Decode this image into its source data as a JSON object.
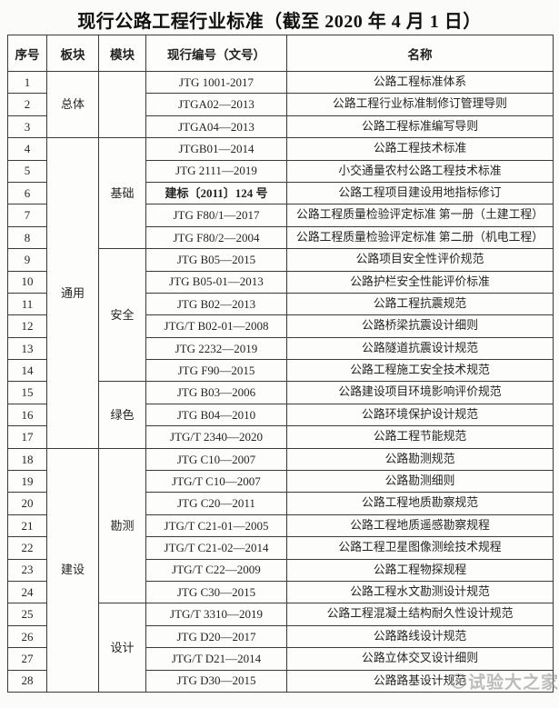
{
  "title": "现行公路工程行业标准（截至 2020 年 4 月 1 日）",
  "watermark": {
    "text": "试验大之家",
    "icon": "circle-swirl-logo",
    "color": "#919191"
  },
  "colors": {
    "border": "#3a3a3a",
    "text": "#242424",
    "background": "#fbfbfa"
  },
  "table": {
    "headers": [
      "序号",
      "板块",
      "模块",
      "现行编号（文号）",
      "名称"
    ],
    "plate_groups": [
      {
        "label": "总体",
        "start": 1,
        "span": 3
      },
      {
        "label": "通用",
        "start": 4,
        "span": 14
      },
      {
        "label": "建设",
        "start": 18,
        "span": 11
      }
    ],
    "module_groups": [
      {
        "label": "",
        "start": 1,
        "span": 3
      },
      {
        "label": "基础",
        "start": 4,
        "span": 5
      },
      {
        "label": "安全",
        "start": 9,
        "span": 6
      },
      {
        "label": "绿色",
        "start": 15,
        "span": 3
      },
      {
        "label": "勘测",
        "start": 18,
        "span": 7
      },
      {
        "label": "设计",
        "start": 25,
        "span": 4
      }
    ],
    "rows": [
      {
        "no": "1",
        "code": "JTG 1001-2017",
        "name": "公路工程标准体系"
      },
      {
        "no": "2",
        "code": "JTGA02—2013",
        "name": "公路工程行业标准制修订管理导则"
      },
      {
        "no": "3",
        "code": "JTGA04—2013",
        "name": "公路工程标准编写导则"
      },
      {
        "no": "4",
        "code": "JTGB01—2014",
        "name": "公路工程技术标准"
      },
      {
        "no": "5",
        "code": "JTG 2111—2019",
        "name": "小交通量农村公路工程技术标准"
      },
      {
        "no": "6",
        "code": "建标〔2011〕124 号",
        "name": "公路工程项目建设用地指标修订",
        "bold_code": true
      },
      {
        "no": "7",
        "code": "JTG F80/1—2017",
        "name": "公路工程质量检验评定标准  第一册（土建工程）"
      },
      {
        "no": "8",
        "code": "JTG F80/2—2004",
        "name": "公路工程质量检验评定标准  第二册（机电工程）"
      },
      {
        "no": "9",
        "code": "JTG B05—2015",
        "name": "公路项目安全性评价规范"
      },
      {
        "no": "10",
        "code": "JTG B05-01—2013",
        "name": "公路护栏安全性能评价标准"
      },
      {
        "no": "11",
        "code": "JTG B02—2013",
        "name": "公路工程抗震规范"
      },
      {
        "no": "12",
        "code": "JTG/T B02-01—2008",
        "name": "公路桥梁抗震设计细则"
      },
      {
        "no": "13",
        "code": "JTG 2232—2019",
        "name": "公路隧道抗震设计规范"
      },
      {
        "no": "14",
        "code": "JTG F90—2015",
        "name": "公路工程施工安全技术规范"
      },
      {
        "no": "15",
        "code": "JTG B03—2006",
        "name": "公路建设项目环境影响评价规范"
      },
      {
        "no": "16",
        "code": "JTG B04—2010",
        "name": "公路环境保护设计规范"
      },
      {
        "no": "17",
        "code": "JTG/T 2340—2020",
        "name": "公路工程节能规范"
      },
      {
        "no": "18",
        "code": "JTG C10—2007",
        "name": "公路勘测规范"
      },
      {
        "no": "19",
        "code": "JTG/T C10—2007",
        "name": "公路勘测细则"
      },
      {
        "no": "20",
        "code": "JTG C20—2011",
        "name": "公路工程地质勘察规范"
      },
      {
        "no": "21",
        "code": "JTG/T C21-01—2005",
        "name": "公路工程地质遥感勘察规程"
      },
      {
        "no": "22",
        "code": "JTG/T C21-02—2014",
        "name": "公路工程卫星图像测绘技术规程"
      },
      {
        "no": "23",
        "code": "JTG/T C22—2009",
        "name": "公路工程物探规程"
      },
      {
        "no": "24",
        "code": "JTG C30—2015",
        "name": "公路工程水文勘测设计规范"
      },
      {
        "no": "25",
        "code": "JTG/T 3310—2019",
        "name": "公路工程混凝土结构耐久性设计规范"
      },
      {
        "no": "26",
        "code": "JTG D20—2017",
        "name": "公路路线设计规范"
      },
      {
        "no": "27",
        "code": "JTG/T D21—2014",
        "name": "公路立体交叉设计细则"
      },
      {
        "no": "28",
        "code": "JTG D30—2015",
        "name": "公路路基设计规范"
      }
    ]
  }
}
